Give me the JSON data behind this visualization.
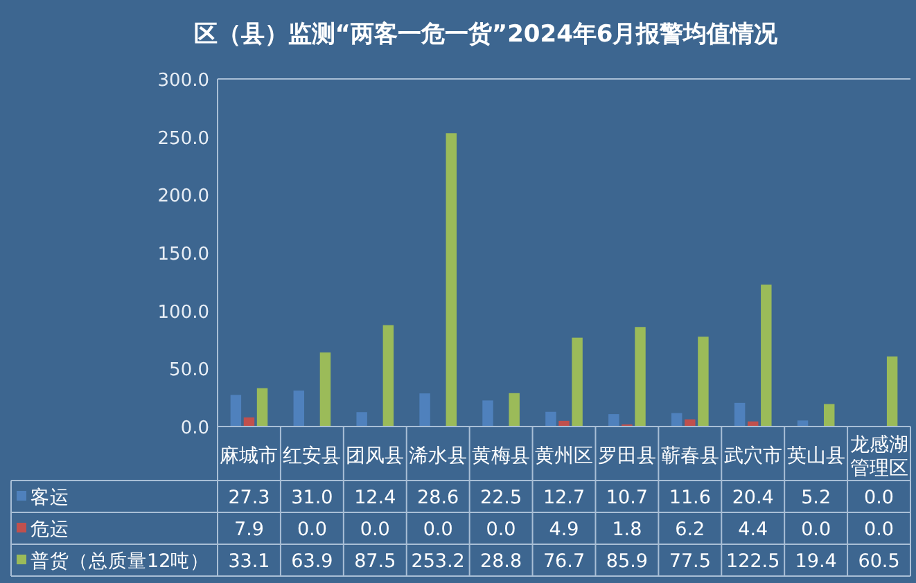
{
  "chart_data": {
    "type": "bar",
    "title": "区（县）监测“两客一危一货”2024年6月报警均值情况",
    "categories": [
      "麻城市",
      "红安县",
      "团风县",
      "浠水县",
      "黄梅县",
      "黄州区",
      "罗田县",
      "蕲春县",
      "武穴市",
      "英山县",
      "龙感湖管理区"
    ],
    "series": [
      {
        "name": "客运",
        "color": "#4f81bd",
        "values": [
          27.3,
          31.0,
          12.4,
          28.6,
          22.5,
          12.7,
          10.7,
          11.6,
          20.4,
          5.2,
          0.0
        ],
        "value_labels": [
          "27.3",
          "31.0",
          "12.4",
          "28.6",
          "22.5",
          "12.7",
          "10.7",
          "11.6",
          "20.4",
          "5.2",
          "0.0"
        ]
      },
      {
        "name": "危运",
        "color": "#c0504d",
        "values": [
          7.9,
          0.0,
          0.0,
          0.0,
          0.0,
          4.9,
          1.8,
          6.2,
          4.4,
          0.0,
          0.0
        ],
        "value_labels": [
          "7.9",
          "0.0",
          "0.0",
          "0.0",
          "0.0",
          "4.9",
          "1.8",
          "6.2",
          "4.4",
          "0.0",
          "0.0"
        ]
      },
      {
        "name": "普货（总质量12吨）",
        "color": "#9bbb59",
        "values": [
          33.1,
          63.9,
          87.5,
          253.2,
          28.8,
          76.7,
          85.9,
          77.5,
          122.5,
          19.4,
          60.5
        ],
        "value_labels": [
          "33.1",
          "63.9",
          "87.5",
          "253.2",
          "28.8",
          "76.7",
          "85.9",
          "77.5",
          "122.5",
          "19.4",
          "60.5"
        ]
      }
    ],
    "ylim": [
      0,
      300
    ],
    "yticks": [
      {
        "value": 0,
        "label": "0.0"
      },
      {
        "value": 50,
        "label": "50.0"
      },
      {
        "value": 100,
        "label": "100.0"
      },
      {
        "value": 150,
        "label": "150.0"
      },
      {
        "value": 200,
        "label": "200.0"
      },
      {
        "value": 250,
        "label": "250.0"
      },
      {
        "value": 300,
        "label": "300.0"
      }
    ],
    "legend": "bottom"
  }
}
